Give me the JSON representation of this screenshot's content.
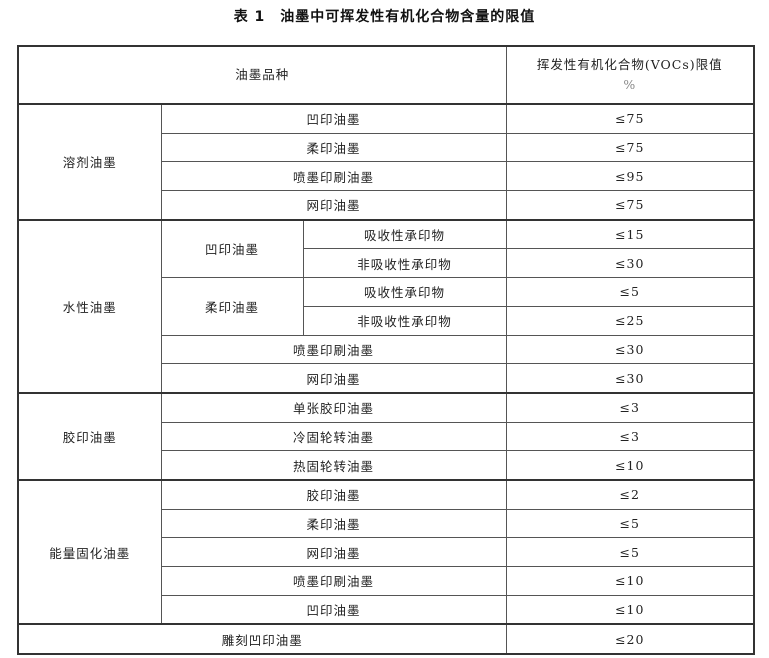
{
  "title": "表 1　油墨中可挥发性有机化合物含量的限值",
  "header": {
    "category": "油墨品种",
    "limit_line1": "挥发性有机化合物(VOCs)限值",
    "limit_line2": "%"
  },
  "groups": [
    {
      "name": "溶剂油墨",
      "items": [
        {
          "name": "凹印油墨",
          "limit": "≤75"
        },
        {
          "name": "柔印油墨",
          "limit": "≤75"
        },
        {
          "name": "喷墨印刷油墨",
          "limit": "≤95"
        },
        {
          "name": "网印油墨",
          "limit": "≤75"
        }
      ]
    },
    {
      "name": "水性油墨",
      "items": [
        {
          "name": "凹印油墨",
          "subs": [
            {
              "name": "吸收性承印物",
              "limit": "≤15"
            },
            {
              "name": "非吸收性承印物",
              "limit": "≤30"
            }
          ]
        },
        {
          "name": "柔印油墨",
          "subs": [
            {
              "name": "吸收性承印物",
              "limit": "≤5"
            },
            {
              "name": "非吸收性承印物",
              "limit": "≤25"
            }
          ]
        },
        {
          "name": "喷墨印刷油墨",
          "limit": "≤30"
        },
        {
          "name": "网印油墨",
          "limit": "≤30"
        }
      ]
    },
    {
      "name": "胶印油墨",
      "items": [
        {
          "name": "单张胶印油墨",
          "limit": "≤3"
        },
        {
          "name": "冷固轮转油墨",
          "limit": "≤3"
        },
        {
          "name": "热固轮转油墨",
          "limit": "≤10"
        }
      ]
    },
    {
      "name": "能量固化油墨",
      "items": [
        {
          "name": "胶印油墨",
          "limit": "≤2"
        },
        {
          "name": "柔印油墨",
          "limit": "≤5"
        },
        {
          "name": "网印油墨",
          "limit": "≤5"
        },
        {
          "name": "喷墨印刷油墨",
          "limit": "≤10"
        },
        {
          "name": "凹印油墨",
          "limit": "≤10"
        }
      ]
    },
    {
      "name": "雕刻凹印油墨",
      "limit": "≤20"
    }
  ]
}
